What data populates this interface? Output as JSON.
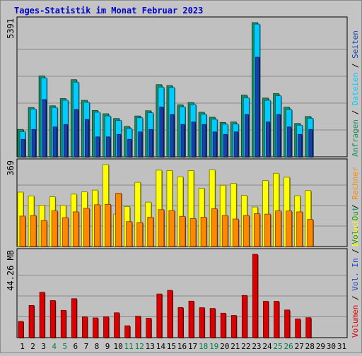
{
  "chart_data": {
    "type": "bar",
    "title": "Tages-Statistik im Monat Februar 2023",
    "categories": [
      "1",
      "2",
      "3",
      "4",
      "5",
      "6",
      "7",
      "8",
      "9",
      "10",
      "11",
      "12",
      "13",
      "14",
      "15",
      "16",
      "17",
      "18",
      "19",
      "20",
      "21",
      "22",
      "23",
      "24",
      "25",
      "26",
      "27",
      "28",
      "29",
      "30",
      "31"
    ],
    "weekend_days": [
      "4",
      "5",
      "11",
      "12",
      "18",
      "19",
      "25",
      "26"
    ],
    "colors": {
      "title": "#0000cc",
      "anfragen": "#1f8c5b",
      "dateien": "#00ccff",
      "seiten": "#1a3fb0",
      "besuche": "#ffff00",
      "rechner": "#ff8800",
      "volumen": "#dd0000",
      "weekend_label": "#00804a",
      "legend_blue": "#2244cc"
    },
    "panels": [
      {
        "id": "hits",
        "max_label": "5391",
        "legend": [
          {
            "text": "Anfragen",
            "color_key": "anfragen"
          },
          {
            "text": "Dateien",
            "color_key": "dateien"
          },
          {
            "text": "Seiten",
            "color_key": "seiten"
          }
        ],
        "series": [
          {
            "name": "Anfragen",
            "values": [
              1100,
              1980,
              3250,
              2050,
              2340,
              3100,
              2270,
              1860,
              1730,
              1540,
              1220,
              1640,
              1850,
              2900,
              2860,
              2090,
              2180,
              1790,
              1590,
              1380,
              1400,
              2480,
              5391,
              2360,
              2540,
              1990,
              1340,
              1620,
              0,
              0,
              0
            ]
          },
          {
            "name": "Dateien",
            "values": [
              1010,
              1920,
              3170,
              1980,
              2270,
              3000,
              2190,
              1790,
              1640,
              1460,
              1140,
              1570,
              1770,
              2800,
              2780,
              2010,
              2100,
              1710,
              1510,
              1310,
              1320,
              2370,
              5330,
              2270,
              2450,
              1900,
              1270,
              1550,
              0,
              0,
              0
            ]
          },
          {
            "name": "Seiten",
            "values": [
              700,
              1100,
              2300,
              1200,
              1300,
              1900,
              1500,
              800,
              800,
              900,
              700,
              1000,
              1100,
              2000,
              1700,
              1300,
              1400,
              1300,
              1000,
              900,
              1000,
              1700,
              4000,
              1400,
              1700,
              1200,
              900,
              1100,
              0,
              0,
              0
            ]
          }
        ]
      },
      {
        "id": "visits",
        "max_label": "369",
        "legend": [
          {
            "text": "Besuche",
            "color_key": "besuche"
          },
          {
            "text": "Rechner",
            "color_key": "rechner"
          }
        ],
        "series": [
          {
            "name": "Besuche",
            "values": [
              245,
              228,
              186,
              224,
              185,
              236,
              246,
              254,
              369,
              146,
              180,
              289,
              200,
              344,
              342,
              314,
              342,
              262,
              345,
              276,
              284,
              230,
              178,
              297,
              330,
              312,
              229,
              252,
              0,
              0,
              0
            ]
          },
          {
            "name": "Rechner",
            "values": [
              137,
              140,
              117,
              161,
              130,
              156,
              172,
              188,
              190,
              240,
              112,
              108,
              132,
              166,
              162,
              136,
              126,
              132,
              170,
              140,
              124,
              140,
              148,
              146,
              161,
              160,
              156,
              122,
              0,
              0,
              0
            ]
          }
        ]
      },
      {
        "id": "volume",
        "max_label": "44.26 MB",
        "legend": [
          {
            "text": "Volumen",
            "color_key": "volumen"
          },
          {
            "text": "Vol. In",
            "color_key": "legend_blue"
          },
          {
            "text": "Vol. Out",
            "color_key": "anfragen"
          }
        ],
        "series": [
          {
            "name": "Volumen",
            "values": [
              8.6,
              17.1,
              24.1,
              19.7,
              14.5,
              20.7,
              11.1,
              10.5,
              11.1,
              13.2,
              6.3,
              11.4,
              10.3,
              23.2,
              25.1,
              16.0,
              19.4,
              15.9,
              15.5,
              13.0,
              11.8,
              22.4,
              44.26,
              19.3,
              19.3,
              14.7,
              9.9,
              10.6,
              0,
              0,
              0
            ]
          }
        ]
      }
    ]
  }
}
